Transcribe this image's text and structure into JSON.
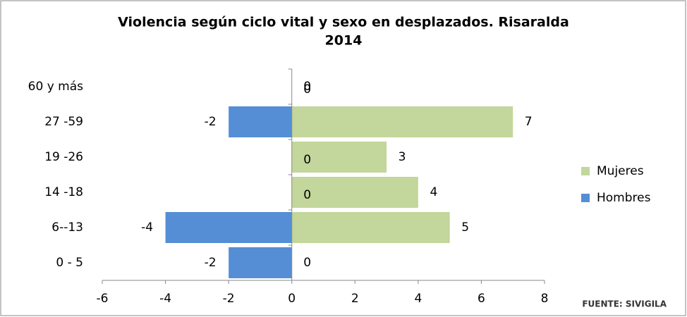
{
  "chart_data": {
    "type": "bar",
    "orientation": "horizontal",
    "title": [
      "Violencia según ciclo vital y sexo en desplazados. Risaralda",
      "2014"
    ],
    "categories": [
      "60 y más",
      "27 -59",
      "19 -26",
      "14 -18",
      "6--13",
      "0 - 5"
    ],
    "series": [
      {
        "name": "Mujeres",
        "color": "#c3d69b",
        "values": [
          0,
          7,
          3,
          4,
          5,
          0
        ]
      },
      {
        "name": "Hombres",
        "color": "#558ed5",
        "values": [
          0,
          -2,
          0,
          0,
          -4,
          -2
        ]
      }
    ],
    "xlim": [
      -6,
      8
    ],
    "xticks": [
      -6,
      -4,
      -2,
      0,
      2,
      4,
      6,
      8
    ],
    "legend": "right",
    "source": "FUENTE: SIVIGILA"
  }
}
